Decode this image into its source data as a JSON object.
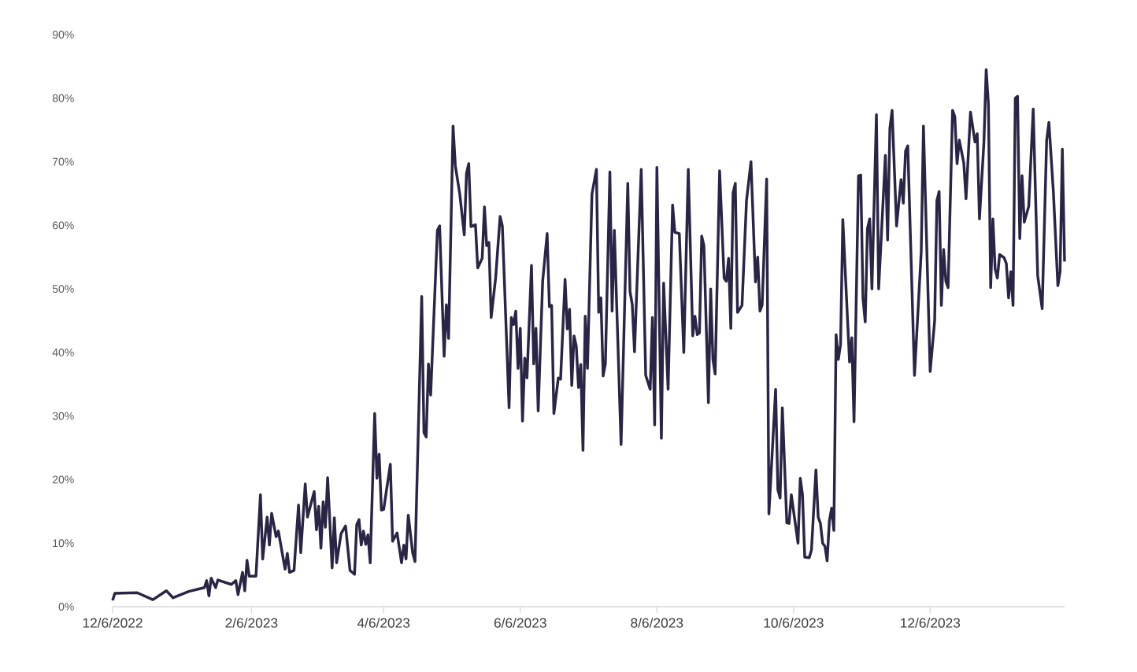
{
  "chart_data": {
    "type": "line",
    "x": [
      "2022-12-06",
      "2022-12-07",
      "2022-12-17",
      "2022-12-24",
      "2022-12-30",
      "2023-01-02",
      "2023-01-09",
      "2023-01-16",
      "2023-01-17",
      "2023-01-18",
      "2023-01-19",
      "2023-01-21",
      "2023-01-22",
      "2023-01-28",
      "2023-01-30",
      "2023-01-31",
      "2023-02-02",
      "2023-02-03",
      "2023-02-04",
      "2023-02-05",
      "2023-02-08",
      "2023-02-10",
      "2023-02-11",
      "2023-02-13",
      "2023-02-14",
      "2023-02-15",
      "2023-02-17",
      "2023-02-18",
      "2023-02-21",
      "2023-02-22",
      "2023-02-23",
      "2023-02-25",
      "2023-02-27",
      "2023-02-28",
      "2023-03-02",
      "2023-03-03",
      "2023-03-06",
      "2023-03-07",
      "2023-03-08",
      "2023-03-09",
      "2023-03-10",
      "2023-03-11",
      "2023-03-12",
      "2023-03-14",
      "2023-03-15",
      "2023-03-16",
      "2023-03-18",
      "2023-03-20",
      "2023-03-22",
      "2023-03-24",
      "2023-03-25",
      "2023-03-26",
      "2023-03-27",
      "2023-03-28",
      "2023-03-29",
      "2023-03-30",
      "2023-03-31",
      "2023-04-02",
      "2023-04-03",
      "2023-04-04",
      "2023-04-05",
      "2023-04-06",
      "2023-04-09",
      "2023-04-10",
      "2023-04-12",
      "2023-04-14",
      "2023-04-15",
      "2023-04-16",
      "2023-04-17",
      "2023-04-19",
      "2023-04-20",
      "2023-04-23",
      "2023-04-24",
      "2023-04-25",
      "2023-04-26",
      "2023-04-27",
      "2023-04-30",
      "2023-05-01",
      "2023-05-03",
      "2023-05-04",
      "2023-05-05",
      "2023-05-07",
      "2023-05-08",
      "2023-05-10",
      "2023-05-12",
      "2023-05-13",
      "2023-05-14",
      "2023-05-15",
      "2023-05-17",
      "2023-05-18",
      "2023-05-20",
      "2023-05-21",
      "2023-05-22",
      "2023-05-23",
      "2023-05-24",
      "2023-05-26",
      "2023-05-28",
      "2023-05-29",
      "2023-06-01",
      "2023-06-02",
      "2023-06-03",
      "2023-06-04",
      "2023-06-05",
      "2023-06-06",
      "2023-06-07",
      "2023-06-08",
      "2023-06-09",
      "2023-06-11",
      "2023-06-12",
      "2023-06-13",
      "2023-06-14",
      "2023-06-16",
      "2023-06-18",
      "2023-06-19",
      "2023-06-20",
      "2023-06-21",
      "2023-06-23",
      "2023-06-24",
      "2023-06-26",
      "2023-06-27",
      "2023-06-28",
      "2023-06-29",
      "2023-06-30",
      "2023-07-01",
      "2023-07-02",
      "2023-07-03",
      "2023-07-04",
      "2023-07-05",
      "2023-07-06",
      "2023-07-08",
      "2023-07-10",
      "2023-07-11",
      "2023-07-12",
      "2023-07-13",
      "2023-07-14",
      "2023-07-16",
      "2023-07-17",
      "2023-07-18",
      "2023-07-21",
      "2023-07-24",
      "2023-07-25",
      "2023-07-26",
      "2023-07-27",
      "2023-07-30",
      "2023-08-01",
      "2023-08-03",
      "2023-08-04",
      "2023-08-05",
      "2023-08-06",
      "2023-08-08",
      "2023-08-09",
      "2023-08-11",
      "2023-08-13",
      "2023-08-14",
      "2023-08-16",
      "2023-08-18",
      "2023-08-20",
      "2023-08-22",
      "2023-08-23",
      "2023-08-24",
      "2023-08-25",
      "2023-08-26",
      "2023-08-27",
      "2023-08-29",
      "2023-08-30",
      "2023-08-31",
      "2023-09-01",
      "2023-09-03",
      "2023-09-05",
      "2023-09-06",
      "2023-09-07",
      "2023-09-08",
      "2023-09-09",
      "2023-09-10",
      "2023-09-11",
      "2023-09-13",
      "2023-09-15",
      "2023-09-17",
      "2023-09-19",
      "2023-09-20",
      "2023-09-21",
      "2023-09-22",
      "2023-09-24",
      "2023-09-25",
      "2023-09-28",
      "2023-09-29",
      "2023-09-30",
      "2023-10-01",
      "2023-10-03",
      "2023-10-04",
      "2023-10-05",
      "2023-10-08",
      "2023-10-09",
      "2023-10-10",
      "2023-10-11",
      "2023-10-13",
      "2023-10-14",
      "2023-10-16",
      "2023-10-17",
      "2023-10-18",
      "2023-10-19",
      "2023-10-20",
      "2023-10-21",
      "2023-10-22",
      "2023-10-23",
      "2023-10-24",
      "2023-10-25",
      "2023-10-26",
      "2023-10-27",
      "2023-10-28",
      "2023-10-31",
      "2023-11-01",
      "2023-11-02",
      "2023-11-04",
      "2023-11-05",
      "2023-11-06",
      "2023-11-07",
      "2023-11-08",
      "2023-11-09",
      "2023-11-10",
      "2023-11-12",
      "2023-11-13",
      "2023-11-16",
      "2023-11-17",
      "2023-11-18",
      "2023-11-19",
      "2023-11-21",
      "2023-11-23",
      "2023-11-24",
      "2023-11-25",
      "2023-11-26",
      "2023-11-29",
      "2023-12-02",
      "2023-12-03",
      "2023-12-06",
      "2023-12-08",
      "2023-12-09",
      "2023-12-10",
      "2023-12-11",
      "2023-12-12",
      "2023-12-13",
      "2023-12-14",
      "2023-12-16",
      "2023-12-17",
      "2023-12-18",
      "2023-12-19",
      "2023-12-21",
      "2023-12-22",
      "2023-12-24",
      "2023-12-26",
      "2023-12-27",
      "2023-12-28",
      "2023-12-30",
      "2023-12-31",
      "2024-01-01",
      "2024-01-02",
      "2024-01-03",
      "2024-01-04",
      "2024-01-05",
      "2024-01-06",
      "2024-01-08",
      "2024-01-09",
      "2024-01-10",
      "2024-01-11",
      "2024-01-12",
      "2024-01-13",
      "2024-01-14",
      "2024-01-15",
      "2024-01-16",
      "2024-01-17",
      "2024-01-19",
      "2024-01-21",
      "2024-01-23",
      "2024-01-25",
      "2024-01-27",
      "2024-01-28",
      "2024-01-30",
      "2024-02-01",
      "2024-02-02",
      "2024-02-03",
      "2024-02-04"
    ],
    "series": [
      {
        "color": "#2b2545",
        "values": [
          1.0,
          2.1,
          2.2,
          1.1,
          2.5,
          1.4,
          2.4,
          3.0,
          4.1,
          1.7,
          4.5,
          3.0,
          4.2,
          3.5,
          4.1,
          1.9,
          5.4,
          2.5,
          7.3,
          4.8,
          4.8,
          17.6,
          7.5,
          14.1,
          9.7,
          14.7,
          11.0,
          11.9,
          5.9,
          8.4,
          5.4,
          5.7,
          16.0,
          8.5,
          19.3,
          14.1,
          18.1,
          12.1,
          15.8,
          9.2,
          16.5,
          12.5,
          20.3,
          6.1,
          14.0,
          6.9,
          11.5,
          12.7,
          5.7,
          5.1,
          12.9,
          13.7,
          9.7,
          11.9,
          9.8,
          11.3,
          6.9,
          30.4,
          20.2,
          24.0,
          15.2,
          15.3,
          22.4,
          10.3,
          11.6,
          6.9,
          9.7,
          7.5,
          14.4,
          8.4,
          7.1,
          48.8,
          27.4,
          26.7,
          38.2,
          33.3,
          59.2,
          59.9,
          39.4,
          47.5,
          42.2,
          75.6,
          69.4,
          64.9,
          58.5,
          68.2,
          69.7,
          59.8,
          60.1,
          53.3,
          54.8,
          62.9,
          56.8,
          57.3,
          45.5,
          51.7,
          61.4,
          59.9,
          31.3,
          45.5,
          44.4,
          46.5,
          37.5,
          43.8,
          29.2,
          39.1,
          36.0,
          53.7,
          38.2,
          43.8,
          30.8,
          51.2,
          58.7,
          47.2,
          47.4,
          30.4,
          36.0,
          35.8,
          51.5,
          43.7,
          46.8,
          34.8,
          42.6,
          41.0,
          34.5,
          38.1,
          24.6,
          45.7,
          37.5,
          64.9,
          68.8,
          46.3,
          48.6,
          36.3,
          38.2,
          68.4,
          46.5,
          59.2,
          25.5,
          66.6,
          49.6,
          47.5,
          40.1,
          68.8,
          36.4,
          34.2,
          45.5,
          28.6,
          69.1,
          26.5,
          50.9,
          34.2,
          63.2,
          58.9,
          58.7,
          40.0,
          68.8,
          42.6,
          45.7,
          42.8,
          43.1,
          58.3,
          56.8,
          32.1,
          50.0,
          38.9,
          36.6,
          68.6,
          51.7,
          51.2,
          54.8,
          43.8,
          65.1,
          66.6,
          46.3,
          47.4,
          63.9,
          70.0,
          51.1,
          55.0,
          46.5,
          47.5,
          67.3,
          14.6,
          34.2,
          18.4,
          17.1,
          31.3,
          13.2,
          13.1,
          17.6,
          10.0,
          20.2,
          17.6,
          7.8,
          7.7,
          8.9,
          21.5,
          14.1,
          13.1,
          10.0,
          9.5,
          7.2,
          13.5,
          15.5,
          12.0,
          42.8,
          38.9,
          41.3,
          60.9,
          38.5,
          42.3,
          29.1,
          67.8,
          67.9,
          48.5,
          44.8,
          59.5,
          61.0,
          50.0,
          77.4,
          50.0,
          71.0,
          57.7,
          75.2,
          78.1,
          59.9,
          67.2,
          63.5,
          71.7,
          72.5,
          36.4,
          55.8,
          75.6,
          37.0,
          45.0,
          63.9,
          65.3,
          47.4,
          56.2,
          51.2,
          50.2,
          78.1,
          77.1,
          69.7,
          73.4,
          69.8,
          64.2,
          77.8,
          73.1,
          74.4,
          61.0,
          73.1,
          84.5,
          79.1,
          50.2,
          61.0,
          53.1,
          51.7,
          55.4,
          54.9,
          54.0,
          48.6,
          52.7,
          47.4,
          80.0,
          80.3,
          57.9,
          67.8,
          60.5,
          63.0,
          78.3,
          52.1,
          46.9,
          73.4,
          76.2,
          65.3,
          50.5,
          52.7,
          72.0,
          54.3
        ]
      }
    ],
    "xlim": [
      "2022-12-06",
      "2024-02-04"
    ],
    "xticks": [
      {
        "value": "2022-12-06",
        "label": "12/6/2022"
      },
      {
        "value": "2023-02-06",
        "label": "2/6/2023"
      },
      {
        "value": "2023-04-06",
        "label": "4/6/2023"
      },
      {
        "value": "2023-06-06",
        "label": "6/6/2023"
      },
      {
        "value": "2023-08-06",
        "label": "8/6/2023"
      },
      {
        "value": "2023-10-06",
        "label": "10/6/2023"
      },
      {
        "value": "2023-12-06",
        "label": "12/6/2023"
      }
    ],
    "ylim": [
      0,
      90
    ],
    "yticks": [
      {
        "value": 0,
        "label": "0%"
      },
      {
        "value": 10,
        "label": "10%"
      },
      {
        "value": 20,
        "label": "20%"
      },
      {
        "value": 30,
        "label": "30%"
      },
      {
        "value": 40,
        "label": "40%"
      },
      {
        "value": 50,
        "label": "50%"
      },
      {
        "value": 60,
        "label": "60%"
      },
      {
        "value": 70,
        "label": "70%"
      },
      {
        "value": 80,
        "label": "80%"
      },
      {
        "value": 90,
        "label": "90%"
      }
    ]
  }
}
